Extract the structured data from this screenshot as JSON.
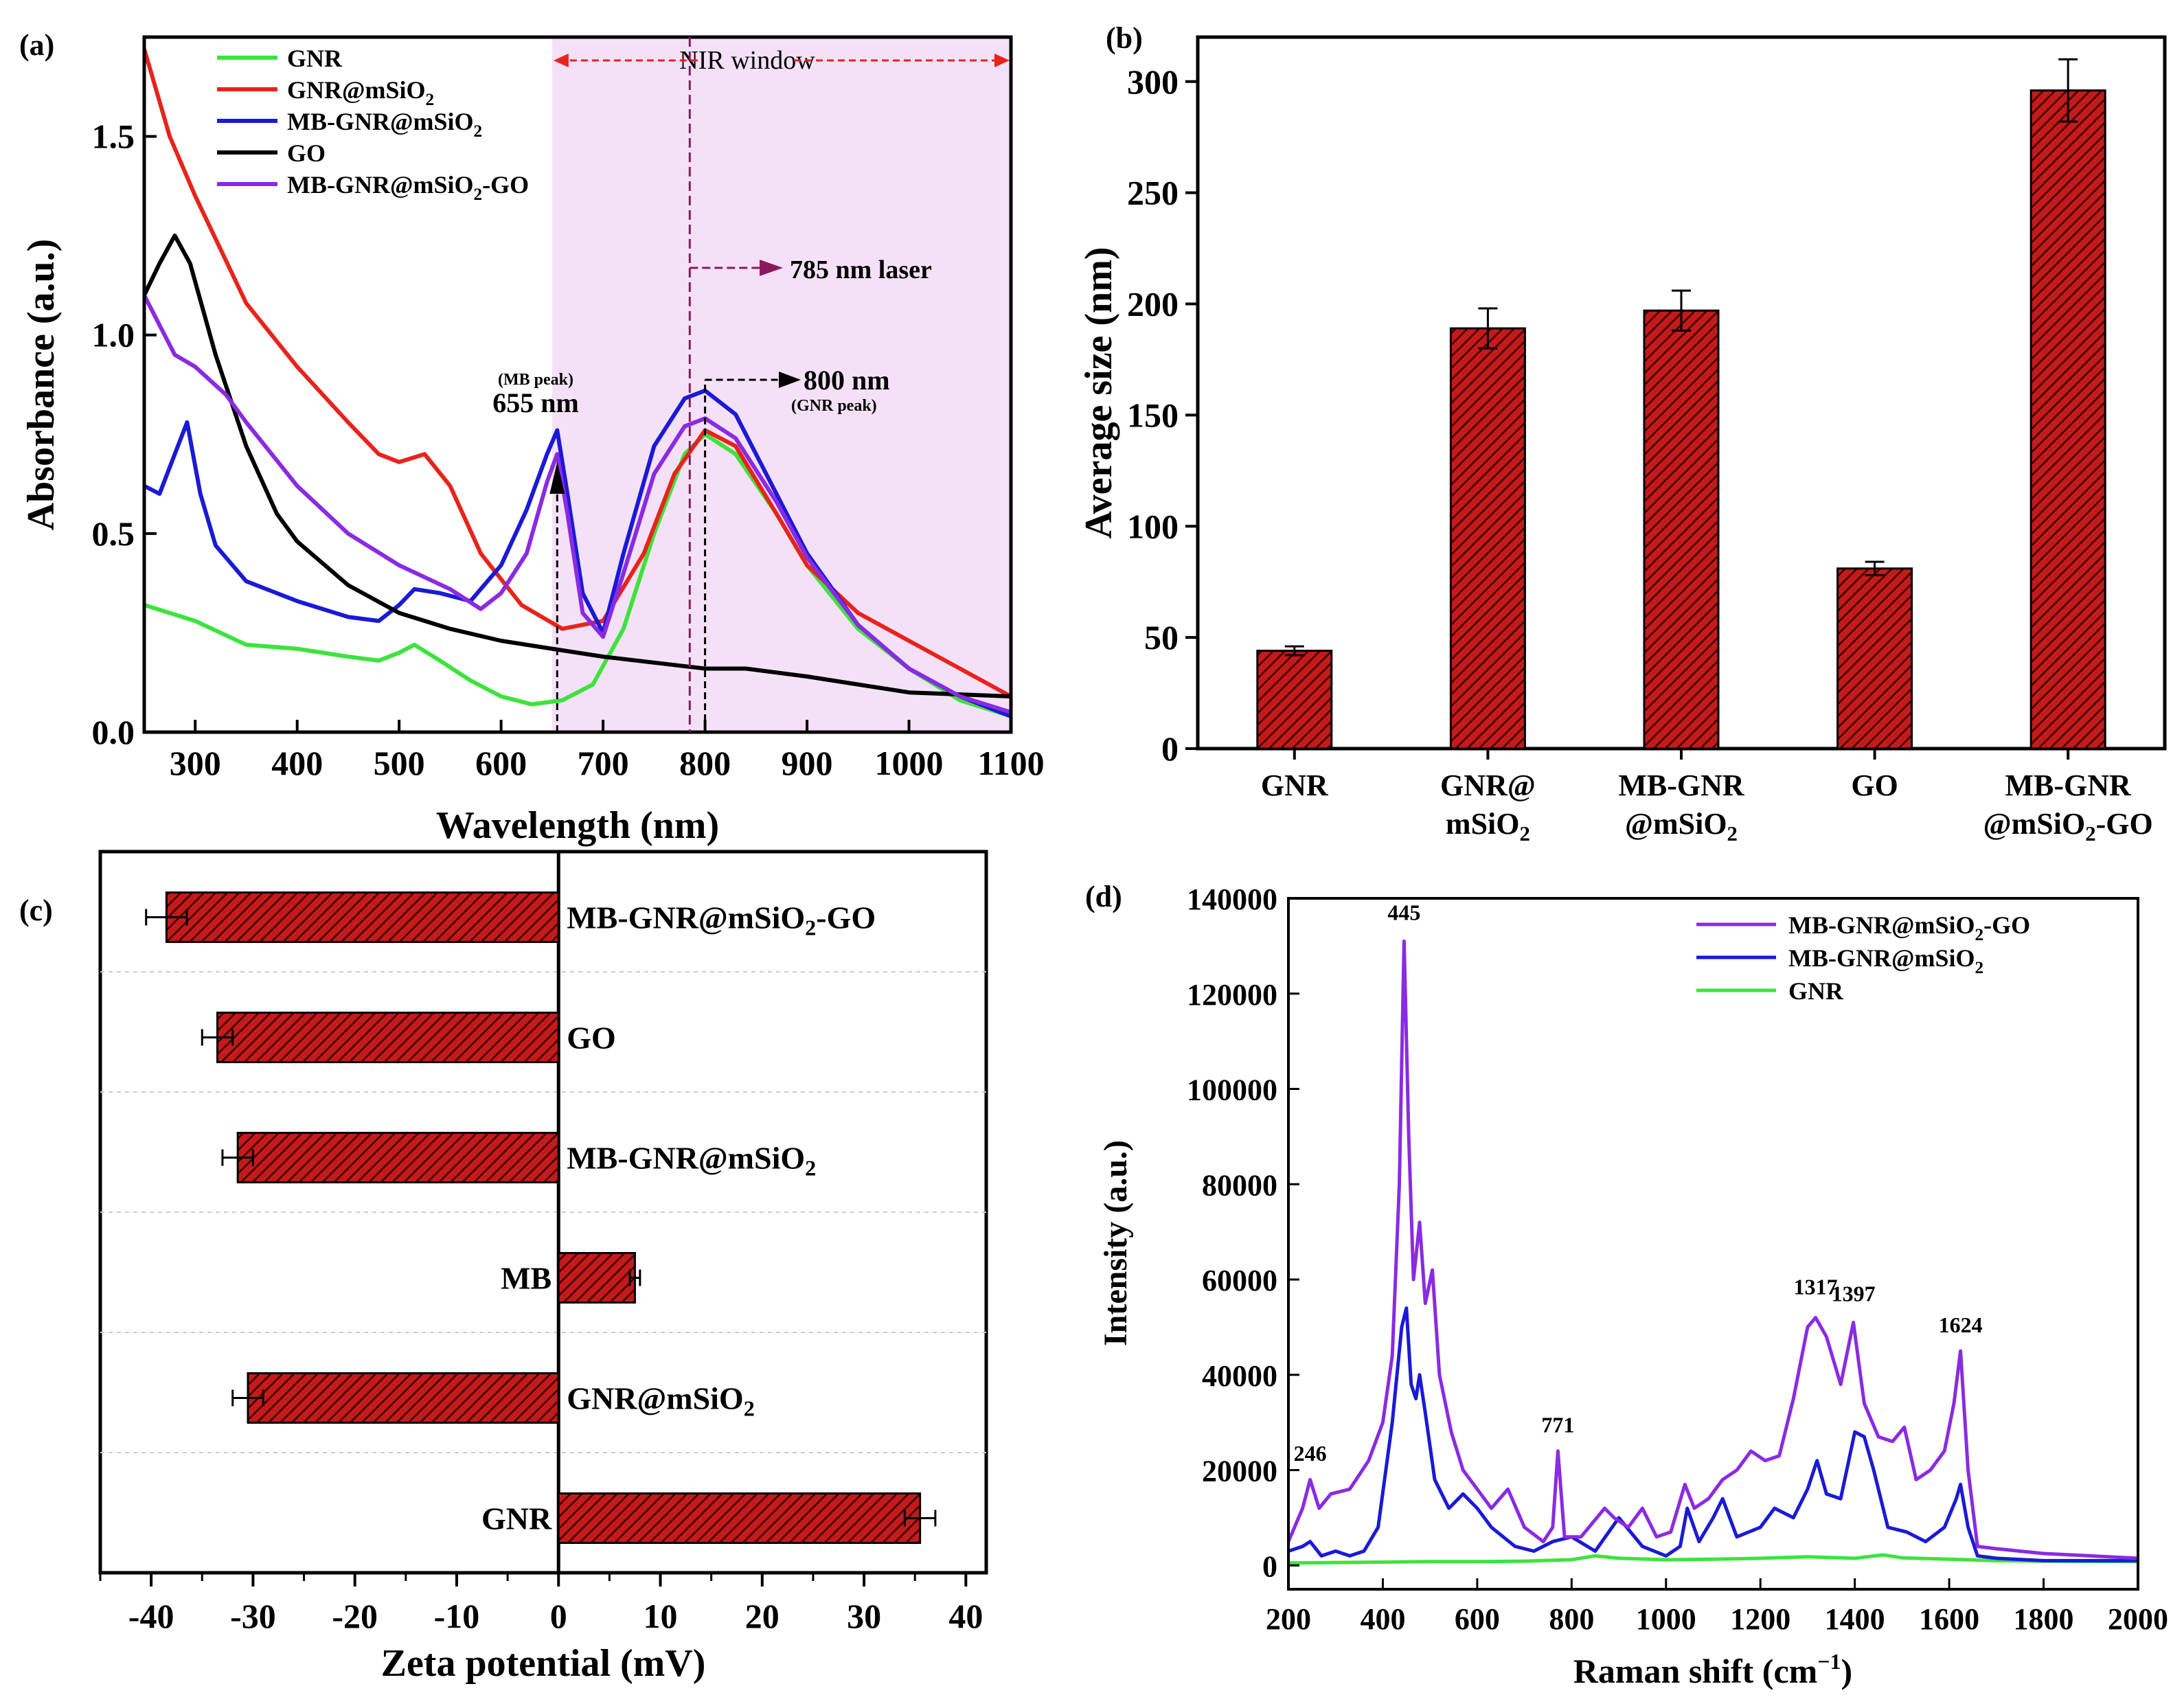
{
  "colors": {
    "GNR": "#3de33d",
    "GNR@mSiO2": "#e8231c",
    "MB-GNR@mSiO2": "#1a1ad6",
    "GO": "#000000",
    "MB-GNR@mSiO2-GO": "#8a2be2",
    "bar_fill": "#c41a1a",
    "nir_window": "#f5e1f7",
    "annotation": "#8b1a5a"
  },
  "chart_data": [
    {
      "panel": "(a)",
      "type": "line",
      "xlabel": "Wavelength (nm)",
      "ylabel": "Absorbance (a.u.)",
      "xlim": [
        250,
        1100
      ],
      "ylim": [
        0,
        1.75
      ],
      "xticks": [
        "300",
        "400",
        "500",
        "600",
        "700",
        "800",
        "900",
        "1000",
        "1100"
      ],
      "yticks": [
        "0.0",
        "0.5",
        "1.0",
        "1.5"
      ],
      "legend": [
        "GNR",
        "GNR@mSiO2",
        "MB-GNR@mSiO2",
        "GO",
        "MB-GNR@mSiO2-GO"
      ],
      "legend_placement": "top-left",
      "shaded_region": {
        "from": 650,
        "to": 1100,
        "label": "NIR window"
      },
      "annotations": {
        "laser": "785 nm laser",
        "mb_peak_label": "(MB peak)",
        "mb_peak_value": "655 nm",
        "gnr_peak_value": "800 nm",
        "gnr_peak_label": "(GNR peak)"
      },
      "series": [
        {
          "name": "GNR",
          "x": [
            250,
            300,
            350,
            400,
            450,
            480,
            500,
            515,
            540,
            570,
            600,
            630,
            660,
            690,
            720,
            750,
            780,
            800,
            830,
            870,
            900,
            950,
            1000,
            1050,
            1100
          ],
          "y": [
            0.32,
            0.28,
            0.22,
            0.21,
            0.19,
            0.18,
            0.2,
            0.22,
            0.18,
            0.13,
            0.09,
            0.07,
            0.08,
            0.12,
            0.26,
            0.5,
            0.7,
            0.75,
            0.7,
            0.55,
            0.42,
            0.26,
            0.16,
            0.08,
            0.04
          ]
        },
        {
          "name": "GNR@mSiO2",
          "x": [
            250,
            275,
            300,
            350,
            400,
            450,
            480,
            500,
            525,
            550,
            580,
            620,
            660,
            700,
            740,
            770,
            800,
            830,
            870,
            900,
            950,
            1000,
            1050,
            1100
          ],
          "y": [
            1.72,
            1.5,
            1.35,
            1.08,
            0.92,
            0.78,
            0.7,
            0.68,
            0.7,
            0.62,
            0.45,
            0.32,
            0.26,
            0.28,
            0.45,
            0.65,
            0.76,
            0.72,
            0.55,
            0.42,
            0.3,
            0.23,
            0.16,
            0.09
          ]
        },
        {
          "name": "MB-GNR@mSiO2",
          "x": [
            250,
            265,
            280,
            292,
            305,
            320,
            350,
            400,
            450,
            480,
            500,
            515,
            540,
            570,
            600,
            625,
            645,
            655,
            665,
            680,
            700,
            720,
            750,
            780,
            800,
            830,
            870,
            900,
            950,
            1000,
            1050,
            1100
          ],
          "y": [
            0.62,
            0.6,
            0.7,
            0.78,
            0.6,
            0.47,
            0.38,
            0.33,
            0.29,
            0.28,
            0.32,
            0.36,
            0.35,
            0.33,
            0.42,
            0.56,
            0.7,
            0.76,
            0.6,
            0.35,
            0.25,
            0.45,
            0.72,
            0.84,
            0.86,
            0.8,
            0.6,
            0.45,
            0.27,
            0.16,
            0.09,
            0.04
          ]
        },
        {
          "name": "GO",
          "x": [
            250,
            265,
            280,
            295,
            320,
            350,
            380,
            400,
            450,
            500,
            550,
            600,
            650,
            700,
            750,
            800,
            840,
            900,
            950,
            1000,
            1050,
            1100
          ],
          "y": [
            1.1,
            1.18,
            1.25,
            1.18,
            0.95,
            0.72,
            0.55,
            0.48,
            0.37,
            0.3,
            0.26,
            0.23,
            0.21,
            0.19,
            0.175,
            0.16,
            0.16,
            0.14,
            0.12,
            0.1,
            0.095,
            0.09
          ]
        },
        {
          "name": "MB-GNR@mSiO2-GO",
          "x": [
            250,
            280,
            300,
            330,
            350,
            400,
            450,
            500,
            550,
            580,
            600,
            625,
            645,
            655,
            665,
            680,
            700,
            720,
            750,
            780,
            800,
            830,
            870,
            900,
            950,
            1000,
            1050,
            1100
          ],
          "y": [
            1.1,
            0.95,
            0.92,
            0.85,
            0.78,
            0.62,
            0.5,
            0.42,
            0.36,
            0.31,
            0.35,
            0.45,
            0.63,
            0.7,
            0.55,
            0.3,
            0.24,
            0.4,
            0.65,
            0.77,
            0.79,
            0.74,
            0.58,
            0.44,
            0.27,
            0.16,
            0.09,
            0.05
          ]
        }
      ]
    },
    {
      "panel": "(b)",
      "type": "bar",
      "ylabel": "Average size (nm)",
      "ylim": [
        0,
        320
      ],
      "yticks": [
        "0",
        "50",
        "100",
        "150",
        "200",
        "250",
        "300"
      ],
      "categories": [
        [
          "GNR"
        ],
        [
          "GNR@",
          "mSiO2"
        ],
        [
          "MB-GNR",
          "@mSiO2"
        ],
        [
          "GO"
        ],
        [
          "MB-GNR",
          "@mSiO2-GO"
        ]
      ],
      "values": [
        44,
        189,
        197,
        81,
        296
      ],
      "errors": [
        2,
        9,
        9,
        3,
        14
      ]
    },
    {
      "panel": "(c)",
      "type": "bar",
      "orientation": "horizontal",
      "xlabel": "Zeta potential (mV)",
      "xlim": [
        -45,
        42
      ],
      "xticks": [
        "-40",
        "-30",
        "-20",
        "-10",
        "0",
        "10",
        "20",
        "30",
        "40"
      ],
      "categories": [
        "MB-GNR@mSiO2-GO",
        "GO",
        "MB-GNR@mSiO2",
        "MB",
        "GNR@mSiO2",
        "GNR"
      ],
      "values": [
        -38.5,
        -33.5,
        -31.5,
        7.5,
        -30.5,
        35.5
      ],
      "errors": [
        2,
        1.5,
        1.5,
        0.5,
        1.5,
        1.5
      ]
    },
    {
      "panel": "(d)",
      "type": "line",
      "xlabel": "Raman shift (cm-1)",
      "ylabel": "Intensity (a.u.)",
      "xlim": [
        200,
        2000
      ],
      "ylim": [
        -5000,
        140000
      ],
      "xticks": [
        "200",
        "400",
        "600",
        "800",
        "1000",
        "1200",
        "1400",
        "1600",
        "1800",
        "2000"
      ],
      "yticks": [
        "0",
        "20000",
        "40000",
        "60000",
        "80000",
        "100000",
        "120000",
        "140000"
      ],
      "legend": [
        "MB-GNR@mSiO2-GO",
        "MB-GNR@mSiO2",
        "GNR"
      ],
      "legend_placement": "top-right",
      "peak_labels": [
        "445",
        "246",
        "771",
        "1317",
        "1397",
        "1624"
      ],
      "series": [
        {
          "name": "MB-GNR@mSiO2-GO",
          "x": [
            200,
            230,
            246,
            265,
            290,
            330,
            370,
            400,
            420,
            435,
            445,
            455,
            465,
            478,
            490,
            505,
            520,
            545,
            570,
            600,
            630,
            665,
            700,
            740,
            760,
            771,
            785,
            820,
            870,
            890,
            920,
            950,
            980,
            1010,
            1040,
            1060,
            1090,
            1120,
            1150,
            1180,
            1210,
            1240,
            1270,
            1300,
            1317,
            1340,
            1370,
            1397,
            1420,
            1450,
            1480,
            1505,
            1530,
            1560,
            1590,
            1610,
            1624,
            1640,
            1660,
            1700,
            1750,
            1800,
            1900,
            2000
          ],
          "y": [
            5000,
            12000,
            18000,
            12000,
            15000,
            16000,
            22000,
            30000,
            44000,
            80000,
            131000,
            90000,
            60000,
            72000,
            55000,
            62000,
            40000,
            28000,
            20000,
            16000,
            12000,
            16000,
            8000,
            5000,
            8000,
            24000,
            6000,
            6000,
            12000,
            10000,
            8000,
            12000,
            6000,
            7000,
            17000,
            12000,
            14000,
            18000,
            20000,
            24000,
            22000,
            23000,
            35000,
            50000,
            52000,
            48000,
            38000,
            51000,
            34000,
            27000,
            26000,
            29000,
            18000,
            20000,
            24000,
            34000,
            45000,
            20000,
            4000,
            3500,
            3000,
            2500,
            2000,
            1500
          ]
        },
        {
          "name": "MB-GNR@mSiO2",
          "x": [
            200,
            230,
            246,
            270,
            300,
            330,
            360,
            390,
            420,
            440,
            450,
            460,
            470,
            478,
            490,
            510,
            540,
            570,
            600,
            630,
            680,
            720,
            760,
            800,
            850,
            900,
            950,
            1000,
            1030,
            1045,
            1070,
            1100,
            1120,
            1150,
            1200,
            1230,
            1270,
            1300,
            1320,
            1340,
            1370,
            1400,
            1420,
            1440,
            1470,
            1510,
            1550,
            1590,
            1615,
            1624,
            1640,
            1660,
            1700,
            1800,
            2000
          ],
          "y": [
            3000,
            4000,
            5000,
            2000,
            3000,
            2000,
            3000,
            8000,
            30000,
            50000,
            54000,
            38000,
            35000,
            40000,
            32000,
            18000,
            12000,
            15000,
            12000,
            8000,
            4000,
            3000,
            5000,
            6000,
            3000,
            10000,
            4000,
            2000,
            4000,
            12000,
            5000,
            10000,
            14000,
            6000,
            8000,
            12000,
            10000,
            16000,
            22000,
            15000,
            14000,
            28000,
            27000,
            20000,
            8000,
            7000,
            5000,
            8000,
            14000,
            17000,
            8000,
            2000,
            1500,
            1000,
            1000
          ]
        },
        {
          "name": "GNR",
          "x": [
            200,
            300,
            400,
            500,
            600,
            700,
            800,
            850,
            900,
            1000,
            1100,
            1200,
            1300,
            1400,
            1460,
            1500,
            1600,
            1700,
            1800,
            2000
          ],
          "y": [
            500,
            600,
            700,
            800,
            800,
            900,
            1200,
            2000,
            1500,
            1200,
            1300,
            1500,
            1800,
            1500,
            2200,
            1600,
            1300,
            1000,
            900,
            800
          ]
        }
      ]
    }
  ]
}
